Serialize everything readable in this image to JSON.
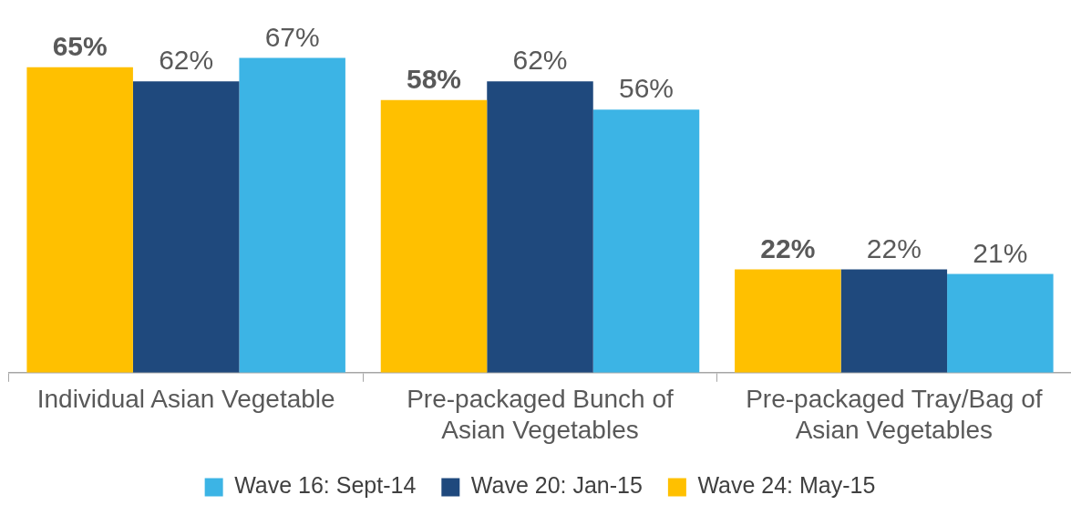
{
  "chart_data": {
    "type": "bar",
    "categories": [
      "Individual Asian Vegetable",
      "Pre-packaged Bunch of\nAsian Vegetables",
      "Pre-packaged Tray/Bag of\nAsian Vegetables"
    ],
    "series": [
      {
        "name": "Wave 24: May-15",
        "color": "#ffc000",
        "values": [
          65,
          58,
          22
        ],
        "value_labels": [
          "65%",
          "58%",
          "22%"
        ]
      },
      {
        "name": "Wave 20: Jan-15",
        "color": "#1f497d",
        "values": [
          62,
          62,
          22
        ],
        "value_labels": [
          "62%",
          "62%",
          "22%"
        ]
      },
      {
        "name": "Wave 16: Sept-14",
        "color": "#3cb4e5",
        "values": [
          67,
          56,
          21
        ],
        "value_labels": [
          "67%",
          "56%",
          "21%"
        ]
      }
    ],
    "legend": "bottom",
    "grid": false
  }
}
